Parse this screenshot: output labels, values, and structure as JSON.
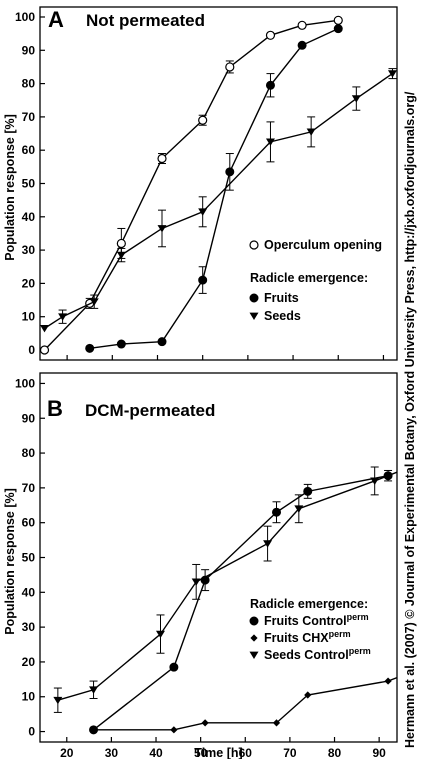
{
  "chart_data": [
    {
      "type": "line",
      "panel_letter": "A",
      "title": "Not permeated",
      "ylabel": "Population response [%]",
      "xlabel": "",
      "xlim": [
        14,
        93
      ],
      "ylim": [
        -3,
        103
      ],
      "yticks": [
        0,
        10,
        20,
        30,
        40,
        50,
        60,
        70,
        80,
        90,
        100
      ],
      "legend": {
        "placement": "right",
        "heading": "Radicle emergence:",
        "entries": [
          "Operculum opening",
          "Fruits",
          "Seeds"
        ]
      },
      "series": [
        {
          "name": "Operculum opening",
          "marker": "circle-open",
          "points": [
            {
              "x": 15,
              "y": 0
            },
            {
              "x": 25,
              "y": 14,
              "err": 1.5
            },
            {
              "x": 32,
              "y": 32,
              "err": 4.5
            },
            {
              "x": 41,
              "y": 57.5,
              "err": 1.5
            },
            {
              "x": 50,
              "y": 69,
              "err": 1.5
            },
            {
              "x": 56,
              "y": 85,
              "err": 1.8
            },
            {
              "x": 65,
              "y": 94.5
            },
            {
              "x": 72,
              "y": 97.5
            },
            {
              "x": 80,
              "y": 99
            }
          ]
        },
        {
          "name": "Fruits",
          "marker": "circle-filled",
          "points": [
            {
              "x": 25,
              "y": 0.5
            },
            {
              "x": 32,
              "y": 1.8
            },
            {
              "x": 41,
              "y": 2.5
            },
            {
              "x": 50,
              "y": 21,
              "err": 4
            },
            {
              "x": 56,
              "y": 53.5,
              "err": 5.5
            },
            {
              "x": 65,
              "y": 79.5,
              "err": 3.5
            },
            {
              "x": 72,
              "y": 91.5
            },
            {
              "x": 80,
              "y": 96.5
            }
          ]
        },
        {
          "name": "Seeds",
          "marker": "triangle-down",
          "points": [
            {
              "x": 15,
              "y": 6.5
            },
            {
              "x": 19,
              "y": 10,
              "err": 2
            },
            {
              "x": 26,
              "y": 14.5,
              "err": 2
            },
            {
              "x": 32,
              "y": 28.5,
              "err": 2
            },
            {
              "x": 41,
              "y": 36.5,
              "err": 5.5
            },
            {
              "x": 50,
              "y": 41.5,
              "err": 4.5
            },
            {
              "x": 65,
              "y": 62.5,
              "err": 6
            },
            {
              "x": 74,
              "y": 65.5,
              "err": 4.5
            },
            {
              "x": 84,
              "y": 75.5,
              "err": 3.5
            },
            {
              "x": 92,
              "y": 83,
              "err": 1.5
            }
          ]
        }
      ]
    },
    {
      "type": "line",
      "panel_letter": "B",
      "title": "DCM-permeated",
      "ylabel": "Population response [%]",
      "xlabel": "Time [h]",
      "xlim": [
        14,
        94
      ],
      "ylim": [
        -3,
        103
      ],
      "xticks": [
        20,
        30,
        40,
        50,
        60,
        70,
        80,
        90
      ],
      "yticks": [
        0,
        10,
        20,
        30,
        40,
        50,
        60,
        70,
        80,
        90,
        100
      ],
      "legend": {
        "placement": "lower-right",
        "heading": "Radicle emergence:",
        "entries": [
          {
            "base": "Fruits Control",
            "sup": "perm"
          },
          {
            "base": "Fruits CHX",
            "sup": "perm"
          },
          {
            "base": "Seeds Control",
            "sup": "perm"
          }
        ]
      },
      "series": [
        {
          "name": "Fruits Control perm",
          "marker": "circle-filled",
          "points": [
            {
              "x": 26,
              "y": 0.5
            },
            {
              "x": 44,
              "y": 18.5
            },
            {
              "x": 51,
              "y": 43.5,
              "err": 3
            },
            {
              "x": 67,
              "y": 63,
              "err": 3
            },
            {
              "x": 74,
              "y": 69,
              "err": 2
            },
            {
              "x": 92,
              "y": 73.5,
              "err": 1.5
            }
          ]
        },
        {
          "name": "Fruits CHX perm",
          "marker": "diamond",
          "points": [
            {
              "x": 26,
              "y": 0.5
            },
            {
              "x": 44,
              "y": 0.5
            },
            {
              "x": 51,
              "y": 2.5
            },
            {
              "x": 67,
              "y": 2.5
            },
            {
              "x": 74,
              "y": 10.5
            },
            {
              "x": 92,
              "y": 14.5
            },
            {
              "x": 94,
              "y": 15.5
            }
          ]
        },
        {
          "name": "Seeds Control perm",
          "marker": "triangle-down",
          "points": [
            {
              "x": 18,
              "y": 9,
              "err": 3.5
            },
            {
              "x": 26,
              "y": 12,
              "err": 2.5
            },
            {
              "x": 41,
              "y": 28,
              "err": 5.5
            },
            {
              "x": 49,
              "y": 43,
              "err": 5
            },
            {
              "x": 65,
              "y": 54,
              "err": 5
            },
            {
              "x": 72,
              "y": 64,
              "err": 4
            },
            {
              "x": 89,
              "y": 72,
              "err": 4
            },
            {
              "x": 94,
              "y": 74.5
            }
          ]
        }
      ]
    }
  ],
  "side_credit": "Hermann et al. (2007)  © Journal of Experimental Botany, Oxford University Press, http://jxb.oxfordjournals.org/"
}
